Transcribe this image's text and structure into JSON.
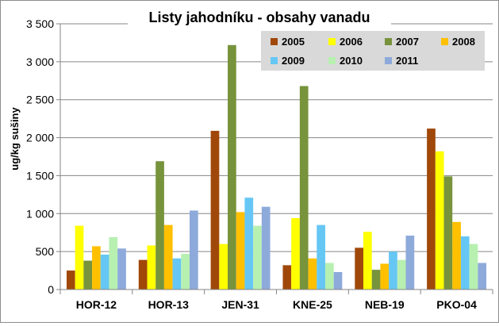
{
  "chart_data": {
    "type": "bar",
    "title": "Listy jahodníku - obsahy vanadu",
    "xlabel": "",
    "ylabel": "ug/kg sušiny",
    "ylim": [
      0,
      3500
    ],
    "yticks": [
      0,
      500,
      1000,
      1500,
      2000,
      2500,
      3000,
      3500
    ],
    "ytick_labels": [
      "0",
      "500",
      "1 000",
      "1 500",
      "2 000",
      "2 500",
      "3 000",
      "3 500"
    ],
    "grid": true,
    "legend_position": "top-right",
    "categories": [
      "HOR-12",
      "HOR-13",
      "JEN-31",
      "KNE-25",
      "NEB-19",
      "PKO-04"
    ],
    "series": [
      {
        "name": "2005",
        "color": "#a0480a",
        "values": [
          250,
          390,
          2090,
          320,
          550,
          2120
        ]
      },
      {
        "name": "2006",
        "color": "#ffff00",
        "values": [
          840,
          580,
          600,
          940,
          760,
          1820
        ]
      },
      {
        "name": "2007",
        "color": "#77933c",
        "values": [
          380,
          1690,
          3220,
          2680,
          260,
          1490
        ]
      },
      {
        "name": "2008",
        "color": "#ffc000",
        "values": [
          570,
          850,
          1020,
          410,
          340,
          890
        ]
      },
      {
        "name": "2009",
        "color": "#66c7f5",
        "values": [
          460,
          410,
          1210,
          850,
          500,
          700
        ]
      },
      {
        "name": "2010",
        "color": "#b7f0b1",
        "values": [
          690,
          470,
          840,
          350,
          390,
          600
        ]
      },
      {
        "name": "2011",
        "color": "#8eaadb",
        "values": [
          540,
          1040,
          1090,
          230,
          710,
          350
        ]
      }
    ]
  }
}
